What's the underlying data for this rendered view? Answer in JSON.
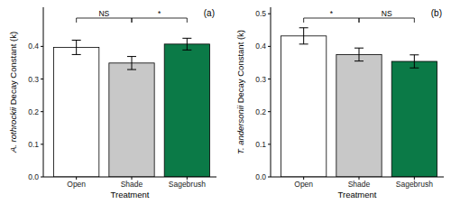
{
  "chart_data": [
    {
      "type": "bar",
      "panel_label": "(a)",
      "x_label": "Treatment",
      "y_label": "A. rothrockii Decay Constant (k)",
      "categories": [
        "Open",
        "Shade",
        "Sagebrush"
      ],
      "values": [
        0.397,
        0.349,
        0.407
      ],
      "errors": [
        0.022,
        0.02,
        0.018
      ],
      "colors": [
        "#ffffff",
        "#c8c8c8",
        "#0b7a47"
      ],
      "ylim": [
        0,
        0.52
      ],
      "yticks": [
        {
          "value": 0,
          "label": "0.0"
        },
        0.1,
        0.2,
        0.3,
        0.4
      ],
      "grid": false,
      "annotations": [
        {
          "text": "NS",
          "categories": [
            "Open",
            "Shade"
          ]
        },
        {
          "text": "*",
          "categories": [
            "Shade",
            "Sagebrush"
          ]
        }
      ]
    },
    {
      "type": "bar",
      "panel_label": "(b)",
      "x_label": "Treatment",
      "y_label": "T. andersonii Decay Constant (k)",
      "categories": [
        "Open",
        "Shade",
        "Sagebrush"
      ],
      "values": [
        0.432,
        0.375,
        0.354
      ],
      "errors": [
        0.025,
        0.02,
        0.02
      ],
      "colors": [
        "#ffffff",
        "#c8c8c8",
        "#0b7a47"
      ],
      "ylim": [
        0,
        0.52
      ],
      "yticks": [
        {
          "value": 0,
          "label": "0.0"
        },
        0.1,
        0.2,
        0.3,
        0.4,
        0.5
      ],
      "grid": false,
      "annotations": [
        {
          "text": "*",
          "categories": [
            "Open",
            "Shade"
          ]
        },
        {
          "text": "NS",
          "categories": [
            "Shade",
            "Sagebrush"
          ]
        }
      ]
    }
  ]
}
